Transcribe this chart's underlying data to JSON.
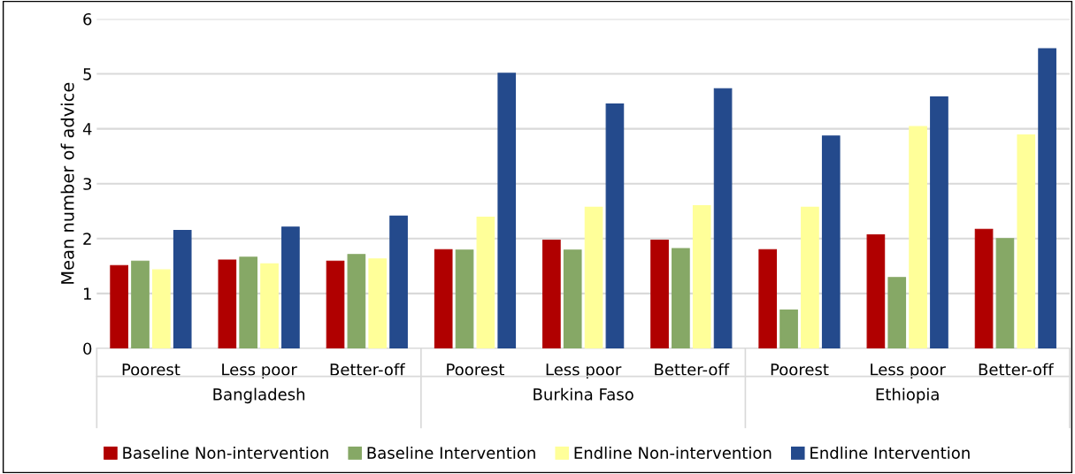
{
  "chart_data": {
    "type": "bar",
    "ylabel": "Mean number of advice",
    "categories": [
      "Poorest",
      "Less poor",
      "Better-off",
      "Poorest",
      "Less poor",
      "Better-off",
      "Poorest",
      "Less poor",
      "Better-off"
    ],
    "annotations": [
      "Bangladesh",
      "Burkina Faso",
      "Ethiopia"
    ],
    "series": [
      {
        "name": "Baseline Non-intervention",
        "color": "#b00000",
        "values": [
          1.51,
          1.61,
          1.59,
          1.8,
          1.97,
          1.97,
          1.8,
          2.07,
          2.17
        ]
      },
      {
        "name": "Baseline Intervention",
        "color": "#86a866",
        "values": [
          1.59,
          1.66,
          1.71,
          1.79,
          1.79,
          1.82,
          0.7,
          1.29,
          2.0
        ]
      },
      {
        "name": "Endline Non-intervention",
        "color": "#ffff99",
        "values": [
          1.43,
          1.54,
          1.63,
          2.39,
          2.57,
          2.6,
          2.57,
          4.04,
          3.89
        ]
      },
      {
        "name": "Endline Intervention",
        "color": "#244a8c",
        "values": [
          2.15,
          2.21,
          2.41,
          5.01,
          4.45,
          4.73,
          3.87,
          4.58,
          5.46
        ]
      }
    ],
    "ylim": [
      0,
      6
    ],
    "yticks": [
      0,
      1,
      2,
      3,
      4,
      5,
      6
    ],
    "grid": "y",
    "legend": "bottom"
  }
}
